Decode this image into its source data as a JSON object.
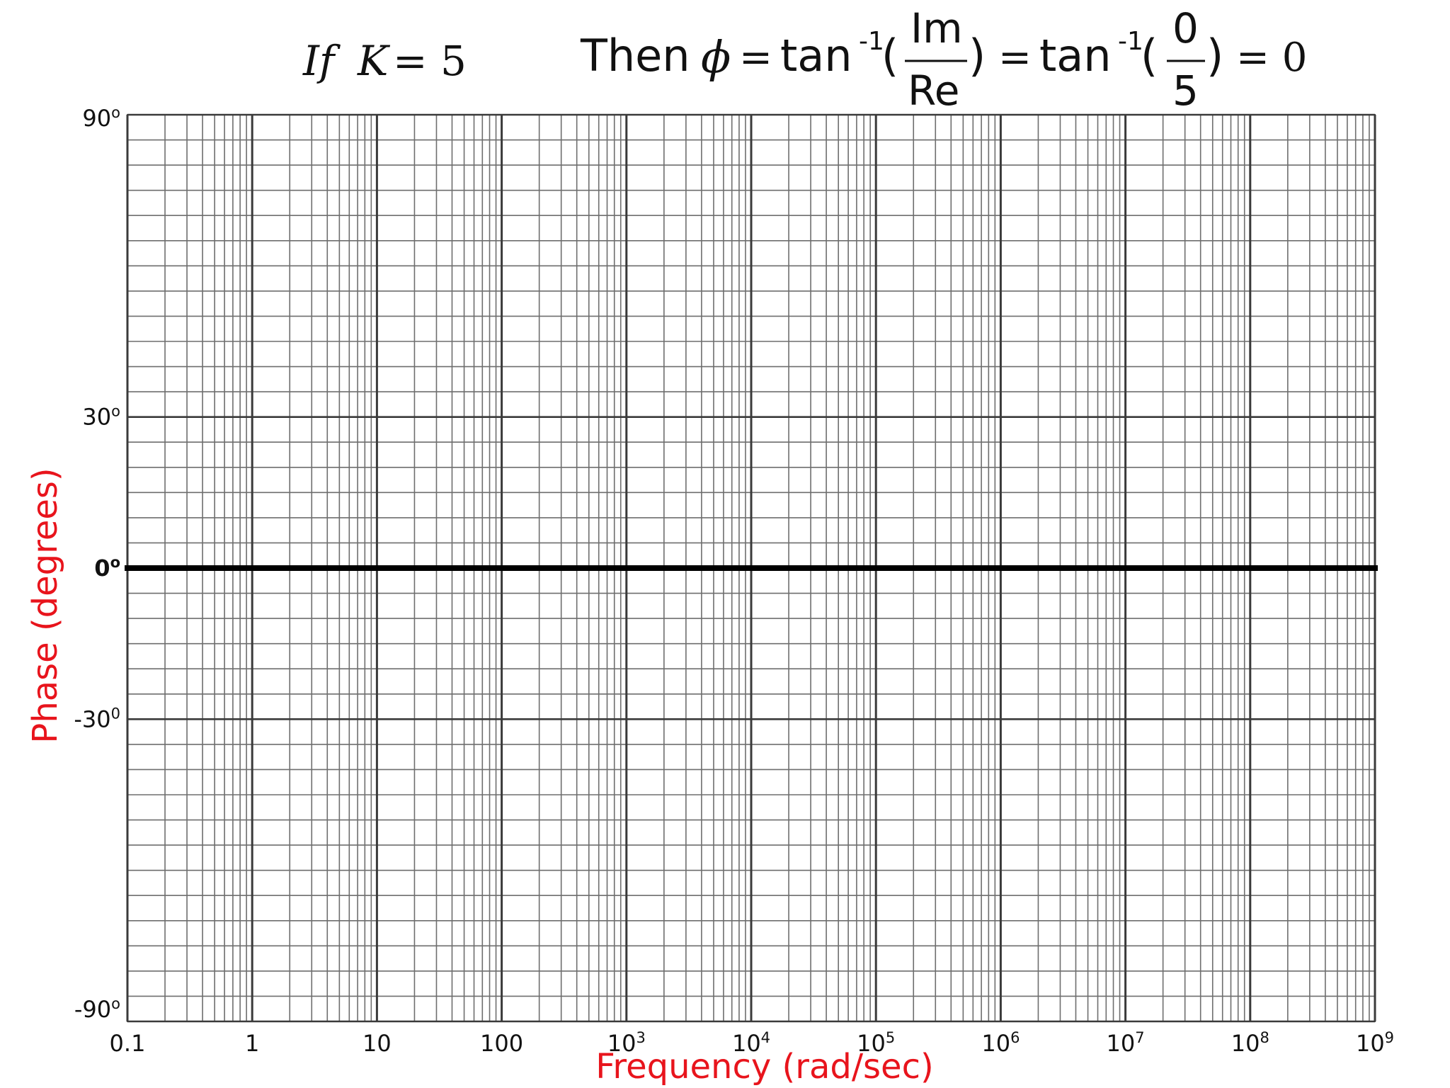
{
  "header": {
    "if_text": "If",
    "k_var": "K",
    "k_eq": "= 5",
    "then_text": "Then",
    "phi": "ϕ",
    "eq1": "=",
    "tan1": "tan",
    "sup1": "-1",
    "open1": "(",
    "num1": "Im",
    "den1": "Re",
    "close1": ")",
    "eq2": "=",
    "tan2": "tan",
    "sup2": "-1",
    "open2": "(",
    "num2": "0",
    "den2": "5",
    "close2": ")",
    "eq3": "= 0"
  },
  "chart_data": {
    "type": "line",
    "title": "",
    "xlabel": "Frequency (rad/sec)",
    "ylabel": "Phase (degrees)",
    "x_scale": "log",
    "xlim": [
      0.1,
      1000000000
    ],
    "ylim": [
      -90,
      90
    ],
    "grid": true,
    "x_ticks": [
      {
        "value": 0.1,
        "base": "0.1",
        "sup": ""
      },
      {
        "value": 1,
        "base": "1",
        "sup": ""
      },
      {
        "value": 10,
        "base": "10",
        "sup": ""
      },
      {
        "value": 100,
        "base": "100",
        "sup": ""
      },
      {
        "value": 1000,
        "base": "10",
        "sup": "3"
      },
      {
        "value": 10000,
        "base": "10",
        "sup": "4"
      },
      {
        "value": 100000,
        "base": "10",
        "sup": "5"
      },
      {
        "value": 1000000,
        "base": "10",
        "sup": "6"
      },
      {
        "value": 10000000,
        "base": "10",
        "sup": "7"
      },
      {
        "value": 100000000,
        "base": "10",
        "sup": "8"
      },
      {
        "value": 1000000000,
        "base": "10",
        "sup": "9"
      }
    ],
    "y_ticks": [
      {
        "value": 90,
        "base": "90",
        "sup": "o",
        "bold": false
      },
      {
        "value": 30,
        "base": "30",
        "sup": "o",
        "bold": false
      },
      {
        "value": 0,
        "base": "0",
        "sup": "o",
        "bold": true
      },
      {
        "value": -30,
        "base": "-30",
        "sup": "0",
        "bold": false
      },
      {
        "value": -90,
        "base": "-90",
        "sup": "o",
        "bold": false
      }
    ],
    "series": [
      {
        "x": [
          0.1,
          1000000000
        ],
        "y": [
          0,
          0
        ]
      }
    ],
    "colors": {
      "axis_label": "#e8141c",
      "series": "#000000",
      "grid_major": "#3a3a3a",
      "grid_minor": "#6e6e6e",
      "text": "#111111"
    }
  }
}
